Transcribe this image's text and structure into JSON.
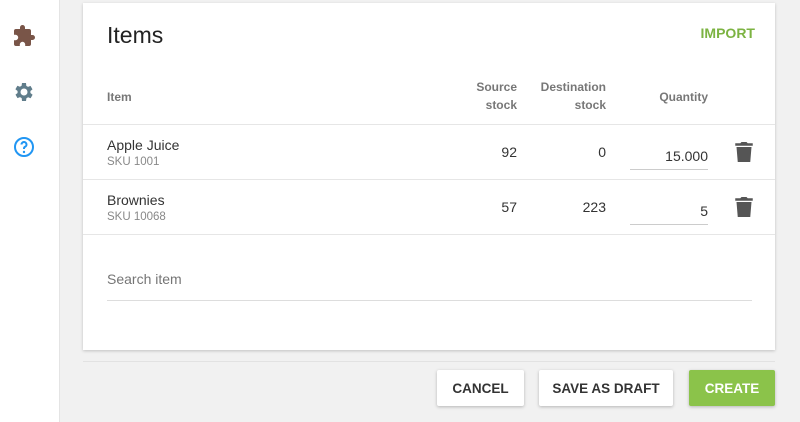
{
  "sidebar": {
    "icons": [
      "puzzle-icon",
      "gear-icon",
      "help-icon"
    ]
  },
  "card": {
    "title": "Items",
    "import_label": "IMPORT"
  },
  "table": {
    "headers": {
      "item": "Item",
      "source": [
        "Source",
        "stock"
      ],
      "destination": [
        "Destination",
        "stock"
      ],
      "quantity": "Quantity"
    },
    "rows": [
      {
        "name": "Apple Juice",
        "sku": "SKU 1001",
        "source": "92",
        "destination": "0",
        "quantity": "15.000"
      },
      {
        "name": "Brownies",
        "sku": "SKU 10068",
        "source": "57",
        "destination": "223",
        "quantity": "5"
      }
    ]
  },
  "search": {
    "placeholder": "Search item"
  },
  "actions": {
    "cancel": "CANCEL",
    "draft": "SAVE AS DRAFT",
    "create": "CREATE"
  },
  "colors": {
    "accent": "#8bc34a",
    "puzzle": "#795548",
    "gear": "#607d8b",
    "help": "#2196f3"
  }
}
